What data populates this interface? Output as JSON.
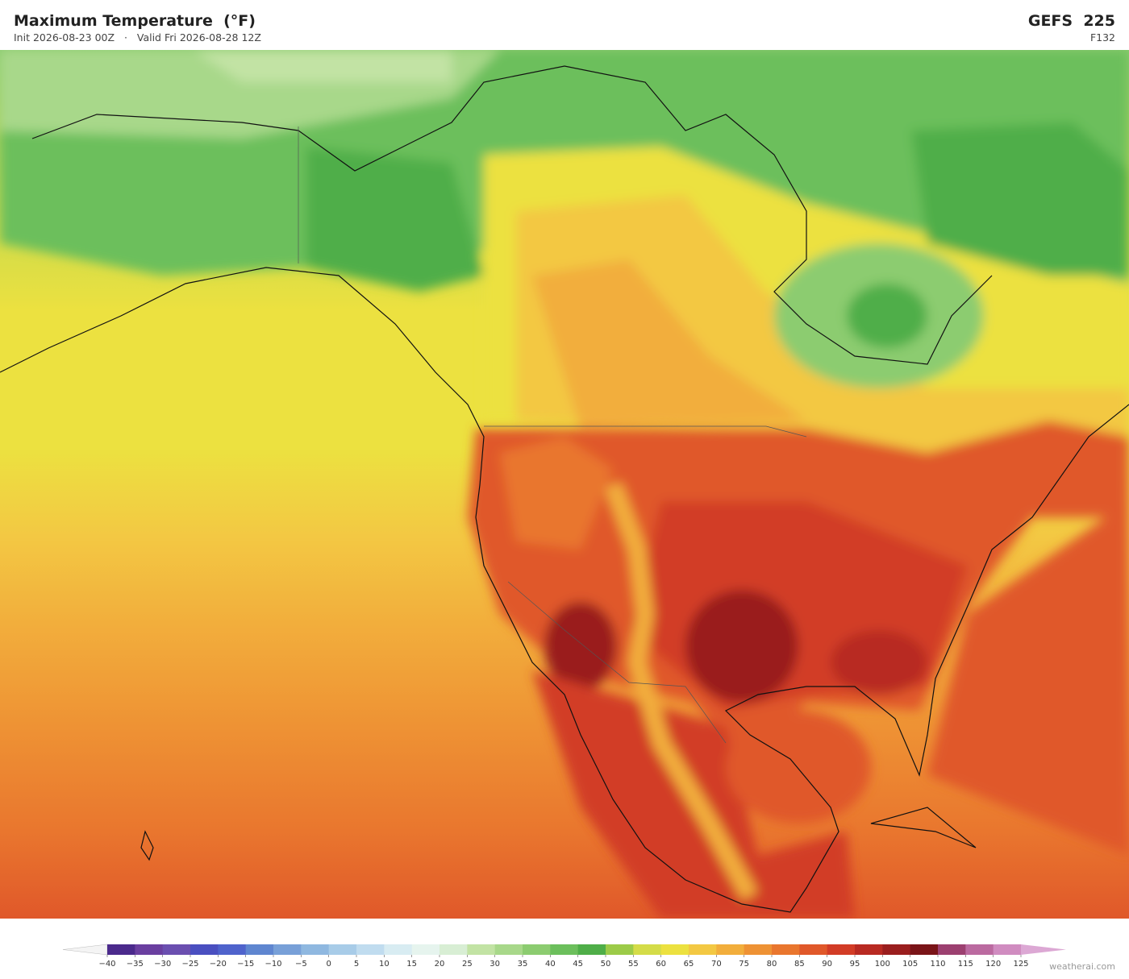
{
  "header": {
    "title": "Maximum Temperature  (°F)",
    "init": "Init 2026-08-23 00Z",
    "separator": "·",
    "valid": "Valid Fri 2026-08-28 12Z",
    "model": "GEFS  225",
    "forecast_hour": "F132"
  },
  "colorbar": {
    "ticks": [
      {
        "value": -40,
        "label": "−40"
      },
      {
        "value": -35,
        "label": "−35"
      },
      {
        "value": -30,
        "label": "−30"
      },
      {
        "value": -25,
        "label": "−25"
      },
      {
        "value": -20,
        "label": "−20"
      },
      {
        "value": -15,
        "label": "−15"
      },
      {
        "value": -10,
        "label": "−10"
      },
      {
        "value": -5,
        "label": "−5"
      },
      0,
      5,
      10,
      15,
      20,
      25,
      30,
      35,
      40,
      45,
      50,
      55,
      60,
      65,
      70,
      75,
      80,
      85,
      90,
      95,
      100,
      105,
      110,
      115,
      120,
      125
    ],
    "colors": [
      "#f4f4f4",
      "#4b2a8c",
      "#6a3fa0",
      "#6b4fb0",
      "#4a4fc0",
      "#4f63cc",
      "#5f86d0",
      "#78a0d8",
      "#8fb8e0",
      "#a8cce8",
      "#c0dcef",
      "#d8ecf2",
      "#e6f4ee",
      "#d8eed4",
      "#c2e3a4",
      "#a8d88a",
      "#8ccc70",
      "#6cbf5c",
      "#4fae48",
      "#9ccb48",
      "#d4dc48",
      "#ece140",
      "#f3c843",
      "#f2ae3c",
      "#ee9234",
      "#e9762e",
      "#e0582a",
      "#d23c26",
      "#b82a22",
      "#9a1e1e",
      "#7a1418",
      "#9c4070",
      "#bb6aa0",
      "#d08cc0",
      "#dca8d4"
    ]
  },
  "footer": {
    "credit": "weatherai.com"
  }
}
